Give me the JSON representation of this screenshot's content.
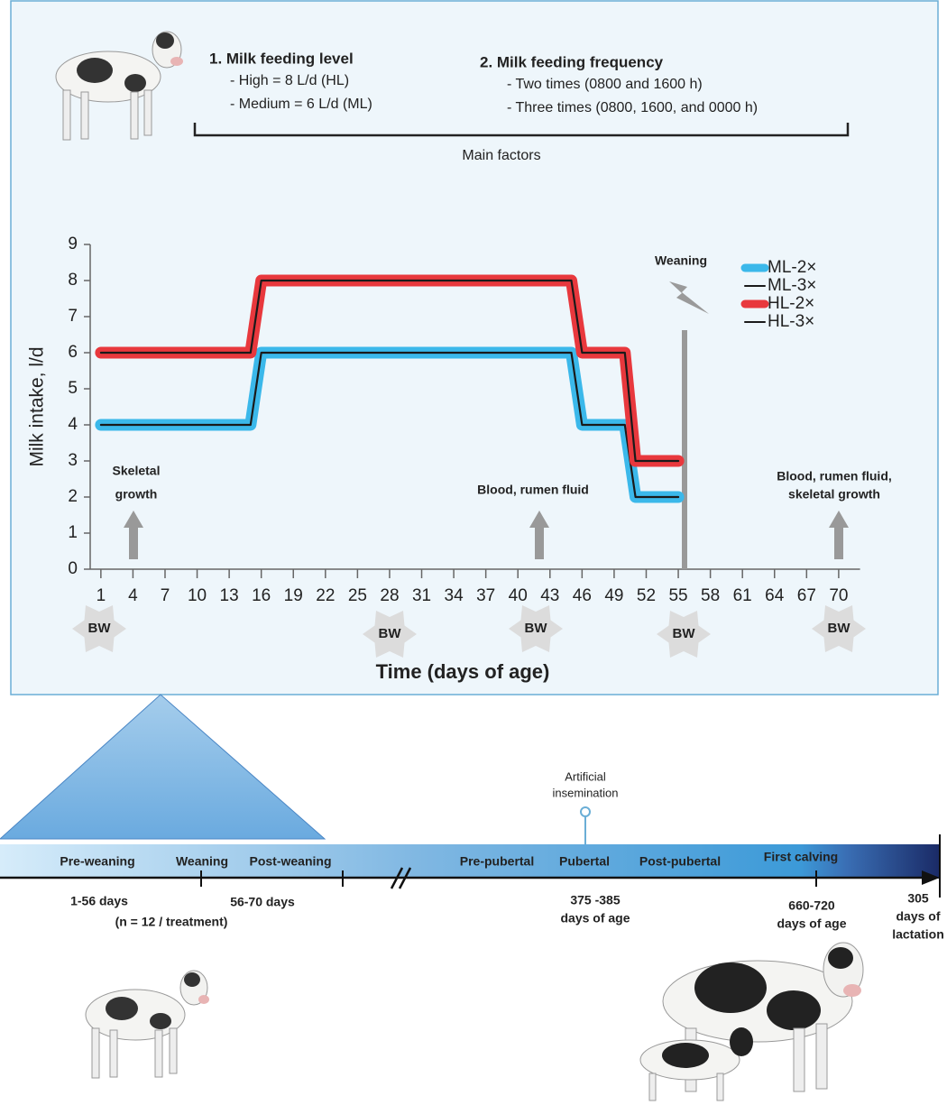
{
  "header": {
    "level_title": "1.  Milk feeding level",
    "level_items": [
      "- High = 8 L/d (HL)",
      "- Medium  = 6 L/d (ML)"
    ],
    "freq_title": "2.   Milk feeding frequency",
    "freq_items": [
      "- Two times (0800 and 1600 h)",
      "- Three times (0800, 1600, and 0000 h)"
    ],
    "bracket_label": "Main factors"
  },
  "chart_data": {
    "type": "line",
    "x_label": "Time (days of age)",
    "y_label": "Milk intake, l/d",
    "x": [
      1,
      15,
      16,
      45,
      46,
      50,
      51,
      55
    ],
    "series": [
      {
        "name": "ML-2×",
        "color": "#3bb8ea",
        "values": [
          4,
          4,
          6,
          6,
          4,
          4,
          2,
          2
        ]
      },
      {
        "name": "ML-3×",
        "color": "#1a1a1a",
        "values": [
          4,
          4,
          6,
          6,
          4,
          4,
          2,
          2
        ]
      },
      {
        "name": "HL-2×",
        "color": "#e8383d",
        "values": [
          6,
          6,
          8,
          8,
          6,
          6,
          3,
          3
        ]
      },
      {
        "name": "HL-3×",
        "color": "#1a1a1a",
        "values": [
          6,
          6,
          8,
          8,
          6,
          6,
          3,
          3
        ]
      }
    ],
    "xlim": [
      0,
      72
    ],
    "xticks": [
      1,
      4,
      7,
      10,
      13,
      16,
      19,
      22,
      25,
      28,
      31,
      34,
      37,
      40,
      43,
      46,
      49,
      52,
      55,
      58,
      61,
      64,
      67,
      70
    ],
    "ylim": [
      0,
      9
    ],
    "yticks": [
      0,
      1,
      2,
      3,
      4,
      5,
      6,
      7,
      8,
      9
    ],
    "legend": "upper right",
    "annotations": {
      "weaning": "Weaning",
      "skeletal": [
        "Skeletal",
        "growth"
      ],
      "blood": [
        "Blood, rumen fluid"
      ],
      "blood_skeletal": [
        "Blood, rumen fluid,",
        "skeletal growth"
      ],
      "bw": [
        "BW",
        "BW",
        "BW",
        "BW",
        "BW"
      ]
    }
  },
  "timeline": {
    "phases": [
      "Pre-weaning",
      "Weaning",
      "Post-weaning",
      "Pre-pubertal",
      "Pubertal",
      "Post-pubertal",
      "First calving"
    ],
    "event": [
      "Artificial",
      "insemination"
    ],
    "periods": {
      "pre": [
        "1-56 days",
        "(n = 12 / treatment)"
      ],
      "post": [
        "56-70 days"
      ],
      "puberty": [
        "375 -385",
        "days of age"
      ],
      "calving": [
        "660-720",
        "days of age"
      ],
      "lactation": [
        "305",
        "days of",
        "lactation"
      ]
    }
  }
}
